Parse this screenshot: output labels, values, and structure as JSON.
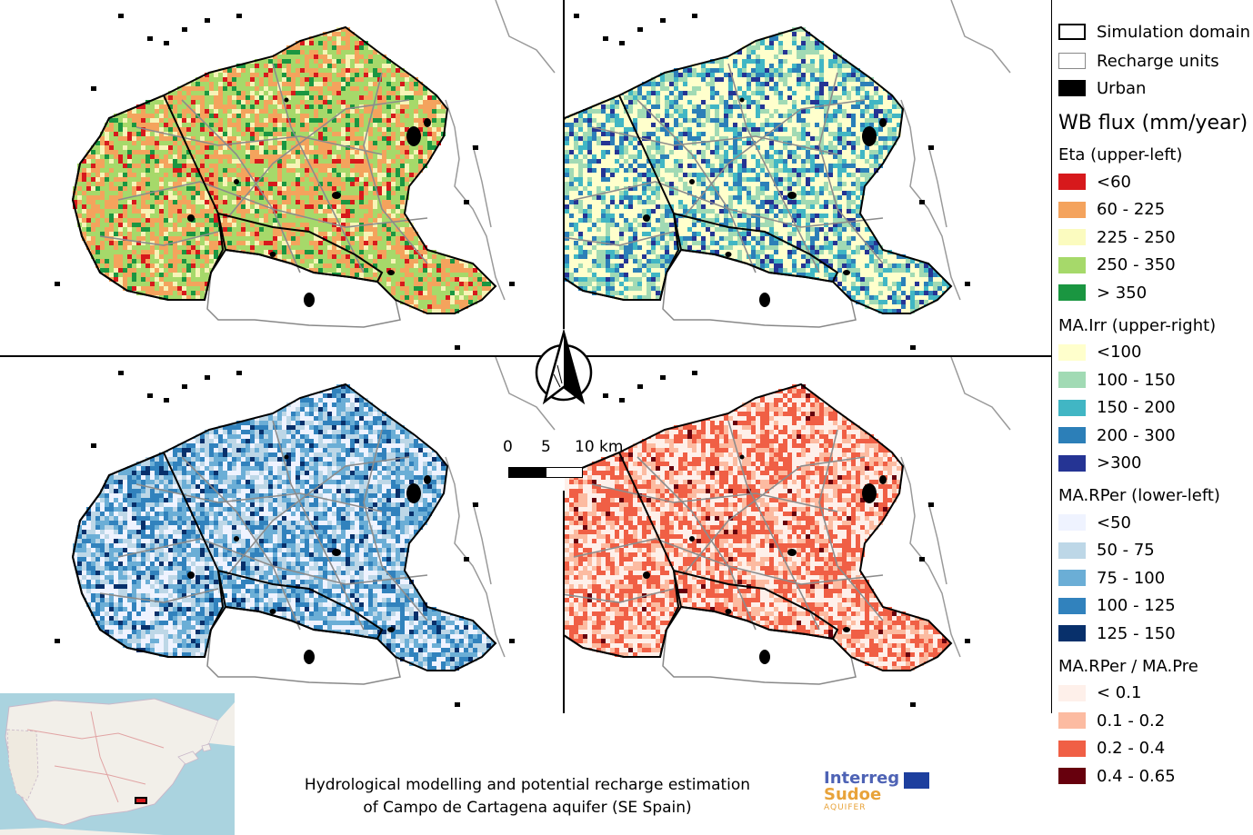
{
  "panels": [
    {
      "id": "ul",
      "name": "eta-map-upper-left",
      "palette": [
        "#d7191c",
        "#f4a35d",
        "#f7f4b7",
        "#a6d96a",
        "#1a9641"
      ],
      "weights": [
        0.06,
        0.34,
        0.12,
        0.4,
        0.08
      ]
    },
    {
      "id": "ur",
      "name": "irrigation-map-upper-right",
      "palette": [
        "#ffffcc",
        "#a1dab4",
        "#41b6c4",
        "#2c7fb8",
        "#253494"
      ],
      "weights": [
        0.45,
        0.2,
        0.15,
        0.13,
        0.07
      ]
    },
    {
      "id": "ll",
      "name": "percolation-map-lower-left",
      "palette": [
        "#eff3ff",
        "#bdd7e7",
        "#6baed6",
        "#3182bd",
        "#08306b"
      ],
      "weights": [
        0.25,
        0.22,
        0.25,
        0.22,
        0.06
      ]
    },
    {
      "id": "lr",
      "name": "recharge-ratio-map-lower-right",
      "palette": [
        "#fef0ea",
        "#fcbba1",
        "#f05f45",
        "#67000d"
      ],
      "weights": [
        0.35,
        0.25,
        0.38,
        0.02
      ]
    }
  ],
  "legend": {
    "simulation_domain": "Simulation domain",
    "recharge_units": "Recharge units",
    "urban": "Urban",
    "title": "WB flux (mm/year)",
    "groups": [
      {
        "heading": "Eta (upper-left)",
        "items": [
          {
            "label": "<60",
            "color": "#d7191c"
          },
          {
            "label": "60 - 225",
            "color": "#f4a35d"
          },
          {
            "label": "225 - 250",
            "color": "#fbfbbf"
          },
          {
            "label": "250 - 350",
            "color": "#a6d96a"
          },
          {
            "label": "> 350",
            "color": "#1a9641"
          }
        ]
      },
      {
        "heading": "MA.Irr (upper-right)",
        "items": [
          {
            "label": "<100",
            "color": "#ffffcc"
          },
          {
            "label": "100 - 150",
            "color": "#a1dab4"
          },
          {
            "label": "150 - 200",
            "color": "#41b6c4"
          },
          {
            "label": "200 - 300",
            "color": "#2c7fb8"
          },
          {
            "label": ">300",
            "color": "#253494"
          }
        ]
      },
      {
        "heading": "MA.RPer (lower-left)",
        "items": [
          {
            "label": "<50",
            "color": "#eff3ff"
          },
          {
            "label": "50 - 75",
            "color": "#bdd7e7"
          },
          {
            "label": "75 - 100",
            "color": "#6baed6"
          },
          {
            "label": "100 - 125",
            "color": "#3182bd"
          },
          {
            "label": "125 - 150",
            "color": "#08306b"
          }
        ]
      },
      {
        "heading": "MA.RPer / MA.Pre",
        "items": [
          {
            "label": "< 0.1",
            "color": "#fef0ea"
          },
          {
            "label": "0.1 - 0.2",
            "color": "#fcbba1"
          },
          {
            "label": "0.2 - 0.4",
            "color": "#f05f45"
          },
          {
            "label": "0.4 - 0.65",
            "color": "#67000d"
          }
        ]
      }
    ]
  },
  "scale": {
    "l0": "0",
    "l5": "5",
    "l10": "10 km"
  },
  "caption": {
    "line1": "Hydrological modelling and potential recharge estimation",
    "line2": "of Campo de Cartagena aquifer (SE Spain)"
  },
  "logo": {
    "interreg": "Interreg",
    "sudoe": "Sudoe",
    "aquifer": "AQUIFER"
  }
}
